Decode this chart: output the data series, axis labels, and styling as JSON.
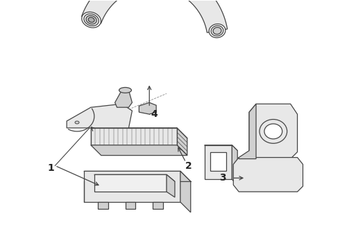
{
  "background_color": "#ffffff",
  "line_color": "#444444",
  "label_color": "#222222",
  "label_fontsize": 10,
  "lw": 0.9
}
